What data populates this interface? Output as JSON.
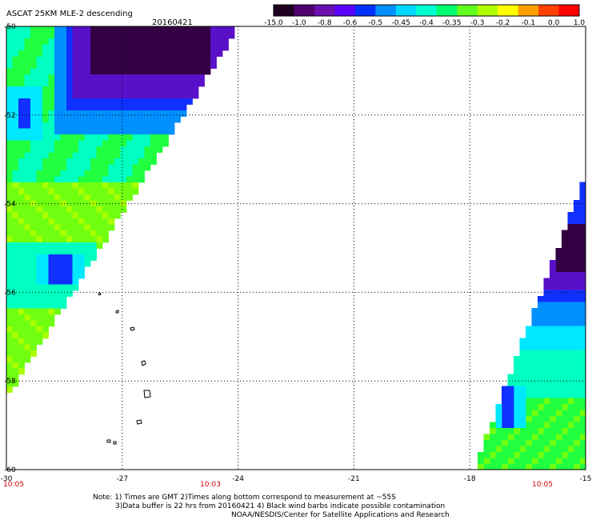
{
  "header": {
    "title": "ASCAT 25KM MLE-2 descending",
    "date": "20160421"
  },
  "colorbar": {
    "labels": [
      "-15.0",
      "-1.0",
      "-0.8",
      "-0.6",
      "-0.5",
      "-0.45",
      "-0.4",
      "-0.35",
      "-0.3",
      "-0.2",
      "-0.1",
      "0.0",
      "1.0"
    ],
    "colors": [
      "#200020",
      "#500070",
      "#6a10b0",
      "#5a00ff",
      "#0030ff",
      "#0090ff",
      "#00d8ff",
      "#00ffd0",
      "#00ff70",
      "#60ff20",
      "#b0ff00",
      "#ffff00",
      "#ffa000",
      "#ff4000",
      "#ff0000"
    ]
  },
  "axes": {
    "x_ticks": [
      "-30",
      "-27",
      "-24",
      "-21",
      "-18",
      "-15"
    ],
    "y_ticks": [
      "-50",
      "-52",
      "-54",
      "-56",
      "-58",
      "-60"
    ],
    "x_range": [
      -30,
      -15
    ],
    "y_range": [
      -60,
      -50
    ]
  },
  "time_labels": [
    "10:05",
    "10:03",
    "10:05"
  ],
  "notes": [
    "Note: 1) Times are GMT 2)Times along bottom correspond to measurement at ~55S",
    "3)Data buffer is 22 hrs from 20160421 4) Black wind barbs indicate possible contamination",
    "NOAA/NESDIS/Center for Satellite Applications and Research"
  ],
  "swath_colors": {
    "deep": "#330044",
    "purple": "#5a10c8",
    "blue": "#1030ff",
    "sky": "#0090ff",
    "cyan": "#00e8ff",
    "aqua": "#00ffc0",
    "green": "#20ff40",
    "lime": "#70ff10",
    "yellowgreen": "#a8ff00"
  }
}
